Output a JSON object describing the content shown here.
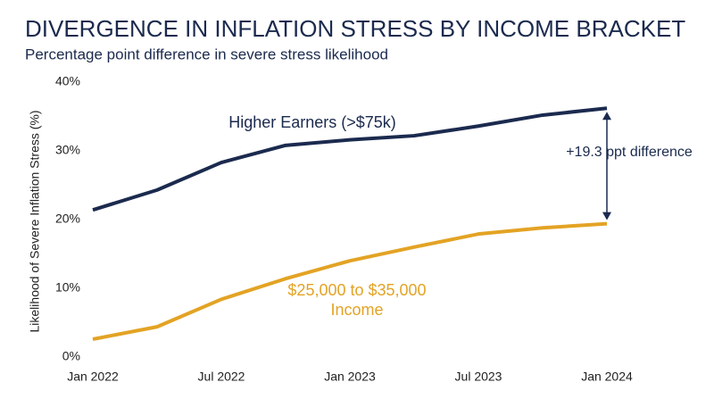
{
  "chart_data": {
    "type": "line",
    "title": "DIVERGENCE IN INFLATION STRESS BY INCOME BRACKET",
    "subtitle": "Percentage point difference in severe stress likelihood",
    "y_label": "Likelihood of Severe Inflation Stress (%)",
    "categories": [
      "Jan 2022",
      null,
      "Jul 2022",
      null,
      "Jan 2023",
      null,
      "Jul 2023",
      null,
      "Jan 2024"
    ],
    "series": [
      {
        "name": "Higher Earners (>$75k)",
        "color": "#1b2a4e",
        "values": [
          21.4,
          24.3,
          28.3,
          30.8,
          31.6,
          32.2,
          33.6,
          35.2,
          36.2
        ]
      },
      {
        "name": "$25,000 to $35,000 Income",
        "color": "#e3a324",
        "values": [
          2.6,
          4.4,
          8.4,
          11.4,
          14.0,
          16.0,
          17.9,
          18.8,
          19.4
        ]
      }
    ],
    "annotation": "+19.3 ppt difference",
    "ylim": [
      0,
      40
    ],
    "yticks": [
      {
        "value": 0,
        "label": "0%"
      },
      {
        "value": 10,
        "label": "10%"
      },
      {
        "value": 20,
        "label": "20%"
      },
      {
        "value": 30,
        "label": "30%"
      },
      {
        "value": 40,
        "label": "40%"
      }
    ],
    "grid": false
  }
}
